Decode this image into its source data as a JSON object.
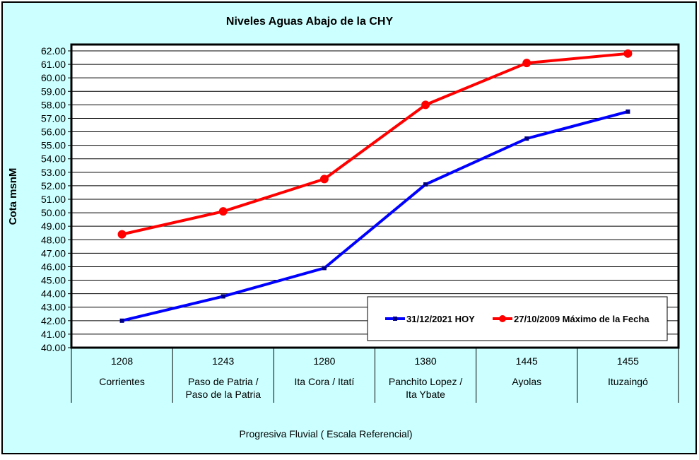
{
  "chart_data": {
    "type": "line",
    "title": "Niveles Aguas Abajo de la CHY",
    "xlabel": "Progresiva Fluvial ( Escala Referencial)",
    "ylabel": "Cota msnM",
    "ylim": [
      40,
      62
    ],
    "yticks": [
      "40.00",
      "41.00",
      "42.00",
      "43.00",
      "44.00",
      "45.00",
      "46.00",
      "47.00",
      "48.00",
      "49.00",
      "50.00",
      "51.00",
      "52.00",
      "53.00",
      "54.00",
      "55.00",
      "56.00",
      "57.00",
      "58.00",
      "59.00",
      "60.00",
      "61.00",
      "62.00"
    ],
    "grid": true,
    "legend_position": "bottom-right",
    "categories": [
      {
        "code": "1208",
        "name": [
          "Corrientes"
        ]
      },
      {
        "code": "1243",
        "name": [
          "Paso de Patria /",
          "Paso de la Patria"
        ]
      },
      {
        "code": "1280",
        "name": [
          "Ita Cora / Itatí"
        ]
      },
      {
        "code": "1380",
        "name": [
          "Panchito Lopez /",
          "Ita Ybate"
        ]
      },
      {
        "code": "1445",
        "name": [
          "Ayolas"
        ]
      },
      {
        "code": "1455",
        "name": [
          "Ituzaingó"
        ]
      }
    ],
    "series": [
      {
        "name": "31/12/2021 HOY",
        "color": "#0000ff",
        "marker": "square",
        "values": [
          42.0,
          43.8,
          45.9,
          52.1,
          55.5,
          57.5
        ]
      },
      {
        "name": "27/10/2009 Máximo de la Fecha",
        "color": "#ff0000",
        "marker": "circle",
        "values": [
          48.4,
          50.1,
          52.5,
          58.0,
          61.1,
          61.8
        ]
      }
    ],
    "background_color": "#ccffff",
    "plot_background": "#ffffff"
  }
}
